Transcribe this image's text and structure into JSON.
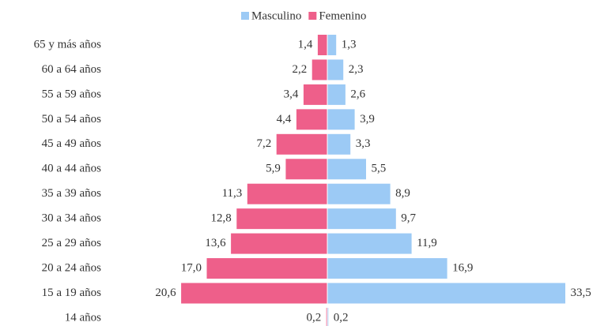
{
  "chart_data": {
    "type": "bar",
    "categories": [
      "65 y más años",
      "60 a 64 años",
      "55 a 59 años",
      "50 a 54 años",
      "45 a 49 años",
      "40 a 44 años",
      "35 a 39 años",
      "30 a 34 años",
      "25 a 29 años",
      "20 a 24 años",
      "15 a 19 años",
      "14 años"
    ],
    "series": [
      {
        "name": "Masculino",
        "color": "#9ccaf5",
        "side": "right",
        "values": [
          1.3,
          2.3,
          2.6,
          3.9,
          3.3,
          5.5,
          8.9,
          9.7,
          11.9,
          16.9,
          33.5,
          0.2
        ],
        "value_labels": [
          "1,3",
          "2,3",
          "2,6",
          "3,9",
          "3,3",
          "5,5",
          "8,9",
          "9,7",
          "11,9",
          "16,9",
          "33,5",
          "0,2"
        ]
      },
      {
        "name": "Femenino",
        "color": "#ee5f8a",
        "side": "left",
        "values": [
          1.4,
          2.2,
          3.4,
          4.4,
          7.2,
          5.9,
          11.3,
          12.8,
          13.6,
          17.0,
          20.6,
          0.2
        ],
        "value_labels": [
          "1,4",
          "2,2",
          "3,4",
          "4,4",
          "7,2",
          "5,9",
          "11,3",
          "12,8",
          "13,6",
          "17,0",
          "20,6",
          "0,2"
        ]
      }
    ]
  }
}
